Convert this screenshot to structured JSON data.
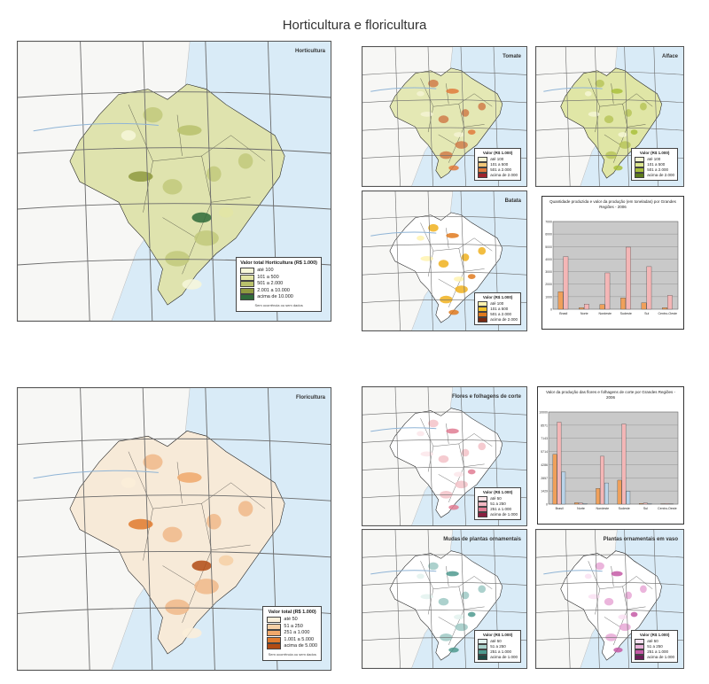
{
  "title": "Horticultura e floricultura",
  "colors": {
    "ocean": "#d9ebf7",
    "ocean_dark": "#a7cbe8",
    "land_bg": "#f7f7f5",
    "grid": "#6b6b6b",
    "border": "#1a1a1a",
    "river": "#8fb4d6"
  },
  "maps": [
    {
      "id": "horticultura-main",
      "label": "Horticultura",
      "fill": "#dfe3ae",
      "fill2": "#c2c97b",
      "legend": {
        "title": "Valor total Horticultura (R$ 1.000)",
        "items": [
          {
            "label": "até 100",
            "color": "#f7f7d9"
          },
          {
            "label": "101 a 500",
            "color": "#e3e5a5"
          },
          {
            "label": "501 a 2.000",
            "color": "#b9c16c"
          },
          {
            "label": "2.001 a 10.000",
            "color": "#8f9a3f"
          },
          {
            "label": "acima de 10.000",
            "color": "#2f6b3a"
          }
        ],
        "note": "Sem ocorrência ou sem dados"
      }
    },
    {
      "id": "small-1",
      "label": "Tomate",
      "fill": "#e4e8b4",
      "fill2": "#d07c4a",
      "legend": {
        "title": "Valor (R$ 1.000)",
        "items": [
          {
            "label": "até 100",
            "color": "#f5f3d2"
          },
          {
            "label": "101 a 500",
            "color": "#f3c97a"
          },
          {
            "label": "501 a 2.000",
            "color": "#e07a3c"
          },
          {
            "label": "acima de 2.000",
            "color": "#a0242c"
          }
        ]
      }
    },
    {
      "id": "small-2",
      "label": "Alface",
      "fill": "#e0e6a6",
      "fill2": "#b7c45a",
      "legend": {
        "title": "Valor (R$ 1.000)",
        "items": [
          {
            "label": "até 100",
            "color": "#f4f6d4"
          },
          {
            "label": "101 a 500",
            "color": "#dce68f"
          },
          {
            "label": "501 a 2.000",
            "color": "#a9bf3c"
          },
          {
            "label": "acima de 2.000",
            "color": "#5c7a1c"
          }
        ]
      }
    },
    {
      "id": "small-3",
      "label": "Batata",
      "fill": "#ffffff",
      "fill2": "#f0b21e",
      "legend": {
        "title": "Valor (R$ 1.000)",
        "items": [
          {
            "label": "até 100",
            "color": "#fff3b0"
          },
          {
            "label": "101 a 500",
            "color": "#f3c22a"
          },
          {
            "label": "501 a 2.000",
            "color": "#e07a1e"
          },
          {
            "label": "acima de 2.000",
            "color": "#7a2a12"
          }
        ]
      }
    },
    {
      "id": "floricultura-main",
      "label": "Floricultura",
      "fill": "#f7ead8",
      "fill2": "#f0b98a",
      "legend": {
        "title": "Valor total (R$ 1.000)",
        "items": [
          {
            "label": "até 50",
            "color": "#fbefd9"
          },
          {
            "label": "51 a 250",
            "color": "#f6d0a6"
          },
          {
            "label": "251 a 1.000",
            "color": "#f0a86b"
          },
          {
            "label": "1.001 a 5.000",
            "color": "#e07a2e"
          },
          {
            "label": "acima de 5.000",
            "color": "#b14b14"
          }
        ],
        "note": "Sem ocorrência ou sem dados"
      }
    },
    {
      "id": "small-4",
      "label": "Flores e folhagens de corte",
      "fill": "#ffffff",
      "fill2": "#f3c2c8",
      "legend": {
        "title": "Valor (R$ 1.000)",
        "items": [
          {
            "label": "até 50",
            "color": "#fbe6ea"
          },
          {
            "label": "51 a 250",
            "color": "#f3b8c3"
          },
          {
            "label": "251 a 1.000",
            "color": "#e07c93"
          },
          {
            "label": "acima de 1.000",
            "color": "#8a2040"
          }
        ]
      }
    },
    {
      "id": "small-5",
      "label": "Mudas de plantas ornamentais",
      "fill": "#ffffff",
      "fill2": "#9ec9c4",
      "legend": {
        "title": "Valor (R$ 1.000)",
        "items": [
          {
            "label": "até 50",
            "color": "#e3f2ef"
          },
          {
            "label": "51 a 250",
            "color": "#a9d3cc"
          },
          {
            "label": "251 a 1.000",
            "color": "#4f9a8f"
          },
          {
            "label": "acima de 1.000",
            "color": "#1f4a44"
          }
        ]
      }
    },
    {
      "id": "small-6",
      "label": "Plantas ornamentais em vaso",
      "fill": "#ffffff",
      "fill2": "#e7a8d6",
      "legend": {
        "title": "Valor (R$ 1.000)",
        "items": [
          {
            "label": "até 50",
            "color": "#f9e1f2"
          },
          {
            "label": "51 a 250",
            "color": "#eab0da"
          },
          {
            "label": "251 a 1.000",
            "color": "#c45aa6"
          },
          {
            "label": "acima de 1.000",
            "color": "#6a1c58"
          }
        ]
      }
    }
  ],
  "chart_data": [
    {
      "type": "bar",
      "title": "Quantidade produzida e valor da produção (em toneladas) por Grandes Regiões - 2006",
      "categories": [
        "Brasil",
        "Norte",
        "Nordeste",
        "Sudeste",
        "Sul",
        "Centro-Oeste"
      ],
      "series": [
        {
          "name": "",
          "color": "#f0a05a",
          "values": [
            1400,
            120,
            380,
            900,
            520,
            120
          ]
        },
        {
          "name": "",
          "color": "#f4b6b6",
          "values": [
            4200,
            400,
            2900,
            4950,
            3400,
            1100
          ]
        }
      ],
      "ylim": [
        0,
        7000
      ],
      "grid": true,
      "legend": "bottom"
    },
    {
      "type": "bar",
      "title": "Valor da produção das flores e folhagens de corte por Grandes Regiões - 2006",
      "categories": [
        "Brasil",
        "Norte",
        "Nordeste",
        "Sudeste",
        "Sul",
        "Centro-Oeste"
      ],
      "series": [
        {
          "name": "",
          "color": "#f0a05a",
          "values": [
            5400,
            150,
            1700,
            2600,
            80,
            40
          ]
        },
        {
          "name": "",
          "color": "#f4b6b6",
          "values": [
            8900,
            120,
            5200,
            8700,
            120,
            60
          ]
        },
        {
          "name": "",
          "color": "#b9d3e8",
          "values": [
            3500,
            80,
            2300,
            1400,
            60,
            30
          ]
        }
      ],
      "ylim": [
        0,
        10000
      ],
      "grid": true,
      "legend": "bottom"
    }
  ]
}
